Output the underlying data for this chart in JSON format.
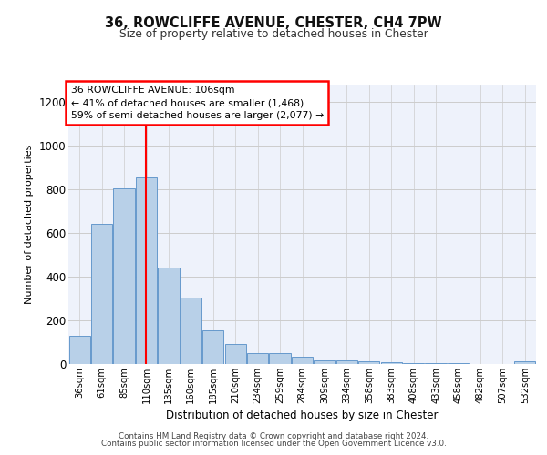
{
  "title_line1": "36, ROWCLIFFE AVENUE, CHESTER, CH4 7PW",
  "title_line2": "Size of property relative to detached houses in Chester",
  "xlabel": "Distribution of detached houses by size in Chester",
  "ylabel": "Number of detached properties",
  "categories": [
    "36sqm",
    "61sqm",
    "85sqm",
    "110sqm",
    "135sqm",
    "160sqm",
    "185sqm",
    "210sqm",
    "234sqm",
    "259sqm",
    "284sqm",
    "309sqm",
    "334sqm",
    "358sqm",
    "383sqm",
    "408sqm",
    "433sqm",
    "458sqm",
    "482sqm",
    "507sqm",
    "532sqm"
  ],
  "values": [
    130,
    640,
    805,
    855,
    440,
    305,
    155,
    90,
    50,
    48,
    35,
    18,
    18,
    13,
    8,
    4,
    3,
    3,
    1,
    0,
    12
  ],
  "bar_color": "#b8d0e8",
  "bar_edge_color": "#6699cc",
  "vline_color": "red",
  "annotation_text": "36 ROWCLIFFE AVENUE: 106sqm\n← 41% of detached houses are smaller (1,468)\n59% of semi-detached houses are larger (2,077) →",
  "ylim": [
    0,
    1280
  ],
  "yticks": [
    0,
    200,
    400,
    600,
    800,
    1000,
    1200
  ],
  "grid_color": "#cccccc",
  "bg_color": "#eef2fb",
  "footer_line1": "Contains HM Land Registry data © Crown copyright and database right 2024.",
  "footer_line2": "Contains public sector information licensed under the Open Government Licence v3.0."
}
